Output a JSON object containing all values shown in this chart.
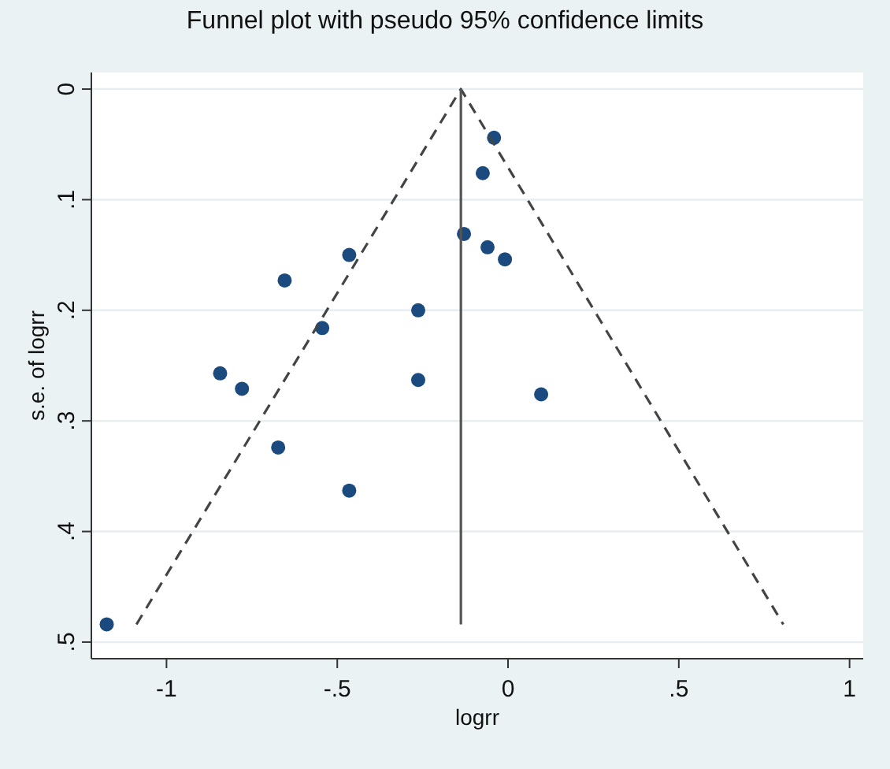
{
  "chart_data": {
    "type": "scatter",
    "title": "Funnel plot with pseudo 95% confidence limits",
    "xlabel": "logrr",
    "ylabel": "s.e. of logrr",
    "xlim": [
      -1.22,
      1.04
    ],
    "ylim": [
      0.515,
      -0.015
    ],
    "xticks": [
      {
        "value": -1,
        "label": "-1"
      },
      {
        "value": -0.5,
        "label": "-.5"
      },
      0,
      {
        "value": 0.5,
        "label": ".5"
      },
      1
    ],
    "yticks": [
      0,
      {
        "value": 0.1,
        "label": ".1"
      },
      {
        "value": 0.2,
        "label": ".2"
      },
      {
        "value": 0.3,
        "label": ".3"
      },
      {
        "value": 0.4,
        "label": ".4"
      },
      {
        "value": 0.5,
        "label": ".5"
      }
    ],
    "grid": "y",
    "series": [
      {
        "color": "#1b4a7e",
        "marker": "circle",
        "x": [
          -0.129,
          -0.465,
          -0.654,
          -0.263,
          -0.544,
          -0.843,
          -0.779,
          -0.263,
          -0.041,
          -0.074,
          -0.06,
          -0.009,
          0.097,
          -0.673,
          -0.465,
          -1.175
        ],
        "values": [
          0.131,
          0.15,
          0.173,
          0.2,
          0.216,
          0.257,
          0.271,
          0.263,
          0.044,
          0.076,
          0.143,
          0.154,
          0.276,
          0.324,
          0.363,
          0.484
        ]
      },
      {
        "type": "line",
        "color": "#444444",
        "marker": "none",
        "line_style": "dashed",
        "x": [
          -1.088,
          -0.138,
          0.806
        ],
        "values": [
          0.484,
          0,
          0.484
        ]
      },
      {
        "type": "line",
        "color": "#555555",
        "marker": "none",
        "line_style": "solid",
        "x": [
          -0.138,
          -0.138
        ],
        "values": [
          0,
          0.484
        ]
      }
    ]
  }
}
